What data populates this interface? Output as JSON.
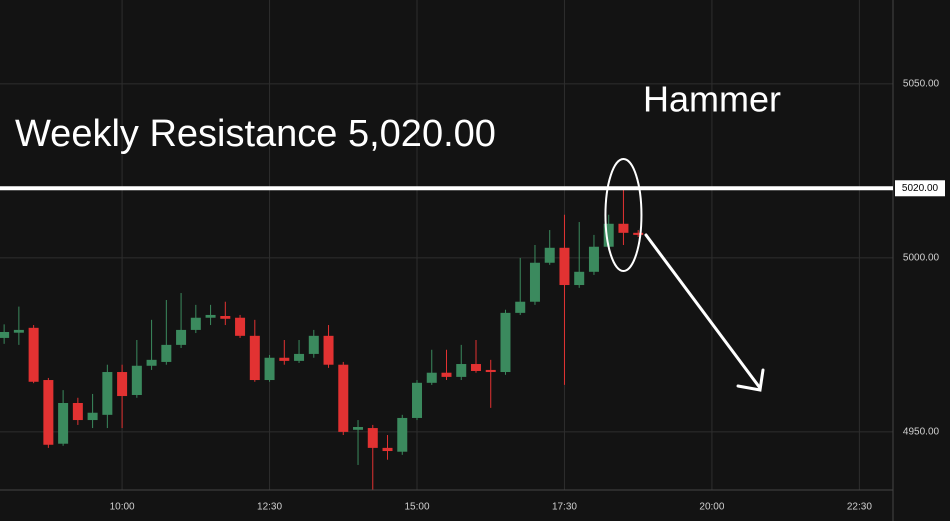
{
  "chart_data": {
    "type": "candlestick",
    "up_color": "#3b8a5e",
    "down_color": "#e23232",
    "x": [
      8,
      8.25,
      8.5,
      8.75,
      9,
      9.25,
      9.5,
      9.75,
      10,
      10.25,
      10.5,
      10.75,
      11,
      11.25,
      11.5,
      11.75,
      12,
      12.25,
      12.5,
      12.75,
      13,
      13.25,
      13.5,
      13.75,
      14,
      14.25,
      14.5,
      14.75,
      15,
      15.25,
      15.5,
      15.75,
      16,
      16.25,
      16.5,
      16.75,
      17,
      17.25,
      17.5,
      17.75,
      18,
      18.25,
      18.5,
      18.75
    ],
    "open": [
      4977.0,
      4978.5,
      4979.9,
      4964.9,
      4946.6,
      4958.3,
      4953.4,
      4954.9,
      4967.2,
      4960.6,
      4969.0,
      4970.1,
      4975.0,
      4979.3,
      4982.8,
      4983.3,
      4982.8,
      4977.6,
      4964.9,
      4971.3,
      4970.4,
      4972.4,
      4977.6,
      4969.3,
      4950.6,
      4951.1,
      4945.4,
      4944.3,
      4954.0,
      4964.1,
      4967.0,
      4965.8,
      4969.5,
      4967.8,
      4967.2,
      4984.2,
      4987.4,
      4998.6,
      5002.9,
      4992.2,
      4996.0,
      5003.2,
      5009.8,
      5007.2
    ],
    "high": [
      4980.9,
      4986.0,
      4980.7,
      4965.5,
      4962.0,
      4959.8,
      4960.9,
      4969.3,
      4969.3,
      4976.4,
      4982.2,
      4987.9,
      4989.9,
      4986.5,
      4986.5,
      4987.4,
      4983.6,
      4982.2,
      4972.1,
      4976.4,
      4976.4,
      4979.3,
      4980.7,
      4970.1,
      4953.4,
      4952.0,
      4949.1,
      4954.9,
      4964.9,
      4973.6,
      4973.6,
      4975.0,
      4976.4,
      4970.7,
      4985.1,
      5000.0,
      5003.7,
      5008.0,
      5012.4,
      5010.3,
      5006.6,
      5012.4,
      5019.8,
      5008.0
    ],
    "low": [
      4975.3,
      4975.0,
      4964.0,
      4945.4,
      4946.0,
      4952.0,
      4951.1,
      4951.1,
      4951.1,
      4959.8,
      4967.8,
      4969.3,
      4974.1,
      4978.4,
      4980.7,
      4980.7,
      4977.0,
      4964.4,
      4964.4,
      4969.3,
      4969.8,
      4971.3,
      4968.4,
      4949.1,
      4940.5,
      4933.3,
      4942.0,
      4943.4,
      4953.4,
      4963.5,
      4964.9,
      4964.9,
      4967.0,
      4956.9,
      4966.4,
      4983.6,
      4986.5,
      4998.0,
      4963.5,
      4991.4,
      4995.1,
      5002.3,
      5003.7,
      5006.0
    ],
    "close": [
      4978.7,
      4979.3,
      4964.4,
      4946.3,
      4958.3,
      4953.4,
      4955.5,
      4967.2,
      4960.3,
      4969.0,
      4970.7,
      4975.0,
      4979.3,
      4982.8,
      4983.6,
      4982.5,
      4977.6,
      4964.9,
      4971.3,
      4970.4,
      4972.4,
      4977.6,
      4969.3,
      4950.0,
      4951.4,
      4945.4,
      4944.5,
      4954.0,
      4964.1,
      4967.0,
      4965.8,
      4969.5,
      4967.5,
      4967.2,
      4984.2,
      4987.4,
      4998.6,
      5002.9,
      4992.2,
      4996.0,
      5003.2,
      5009.8,
      5007.2,
      5006.6
    ],
    "xlim": [
      7.93,
      23.07
    ],
    "ylim": [
      4933.3,
      5074.1
    ],
    "xticks": [
      {
        "value": 10,
        "label": "10:00"
      },
      {
        "value": 12.5,
        "label": "12:30"
      },
      {
        "value": 15,
        "label": "15:00"
      },
      {
        "value": 17.5,
        "label": "17:30"
      },
      {
        "value": 20,
        "label": "20:00"
      },
      {
        "value": 22.5,
        "label": "22:30"
      }
    ],
    "yticks": [
      {
        "value": 4950,
        "label": "4950.00"
      },
      {
        "value": 5000,
        "label": "5000.00"
      },
      {
        "value": 5050,
        "label": "5050.00"
      }
    ],
    "grid": true,
    "resistance": {
      "value": 5020,
      "label": "5020.00",
      "text": "Weekly Resistance 5,020.00"
    },
    "hammer": {
      "text": "Hammer",
      "x": 18.5
    }
  }
}
